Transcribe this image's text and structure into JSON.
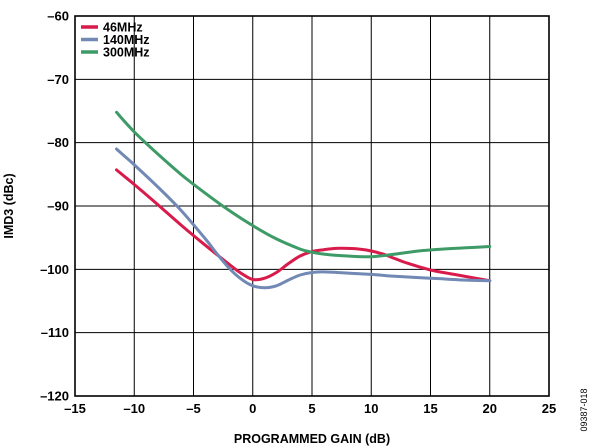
{
  "figure_id": "09387-018",
  "chart_data": {
    "type": "line",
    "xlabel": "PROGRAMMED GAIN (dB)",
    "ylabel": "IMD3 (dBc)",
    "xlim": [
      -15,
      25
    ],
    "ylim": [
      -120,
      -60
    ],
    "x_ticks": [
      -15,
      -10,
      -5,
      0,
      5,
      10,
      15,
      20,
      25
    ],
    "y_ticks": [
      -120,
      -110,
      -100,
      -90,
      -80,
      -70,
      -60
    ],
    "x_tick_labels": [
      "–15",
      "–10",
      "–5",
      "0",
      "5",
      "10",
      "15",
      "20",
      "25"
    ],
    "y_tick_labels": [
      "–120",
      "–110",
      "–100",
      "–90",
      "–80",
      "–70",
      "–60"
    ],
    "grid": true,
    "legend_position": "top-left",
    "series": [
      {
        "name": "46MHz",
        "color": "#d81b4a",
        "x": [
          -11.5,
          -10,
          -8,
          -6,
          -4,
          -2,
          -1,
          0,
          1,
          2,
          3,
          4,
          5,
          6,
          7,
          8,
          9,
          10,
          11,
          12,
          13,
          15,
          17,
          20
        ],
        "y": [
          -84.3,
          -86.6,
          -89.8,
          -93.1,
          -96.2,
          -99.2,
          -100.6,
          -101.6,
          -101.4,
          -100.5,
          -99.1,
          -97.9,
          -97.2,
          -96.9,
          -96.7,
          -96.7,
          -96.8,
          -97.1,
          -97.6,
          -98.3,
          -99.0,
          -100.1,
          -100.8,
          -101.8
        ]
      },
      {
        "name": "140MHz",
        "color": "#7189b4",
        "x": [
          -11.5,
          -10,
          -8,
          -6,
          -4,
          -3,
          -2,
          -1,
          0,
          1,
          2,
          3,
          4,
          5,
          6,
          8,
          10,
          12,
          14,
          16,
          18,
          20
        ],
        "y": [
          -81.0,
          -83.5,
          -87.0,
          -90.8,
          -95.2,
          -97.6,
          -99.8,
          -101.5,
          -102.6,
          -102.9,
          -102.6,
          -101.7,
          -100.9,
          -100.5,
          -100.4,
          -100.6,
          -100.8,
          -101.1,
          -101.3,
          -101.5,
          -101.7,
          -101.8
        ]
      },
      {
        "name": "300MHz",
        "color": "#3e9b67",
        "x": [
          -11.5,
          -10,
          -8,
          -6,
          -4,
          -2,
          0,
          2,
          4,
          5,
          6,
          8,
          10,
          12,
          14,
          16,
          18,
          20
        ],
        "y": [
          -75.2,
          -78.3,
          -81.8,
          -85.1,
          -88.0,
          -90.7,
          -93.1,
          -95.2,
          -96.8,
          -97.3,
          -97.6,
          -97.9,
          -98.0,
          -97.6,
          -97.1,
          -96.8,
          -96.6,
          -96.4
        ]
      }
    ]
  }
}
